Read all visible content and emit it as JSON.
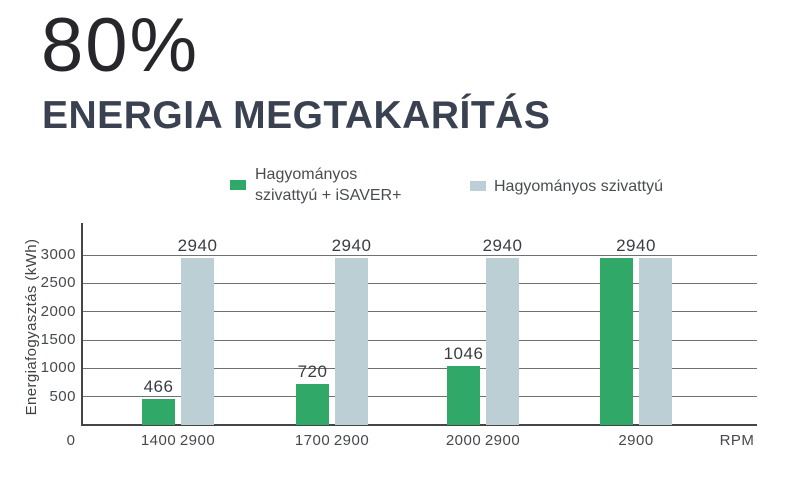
{
  "header": {
    "percent": "80%",
    "subtitle": "ENERGIA MEGTAKARÍTÁS"
  },
  "legend": {
    "items": [
      {
        "label": "Hagyományos\nszivattyú + iSAVER+",
        "color": "#2fa868"
      },
      {
        "label": "Hagyományos szivattyú",
        "color": "#bccfd4"
      }
    ]
  },
  "chart_data": {
    "type": "bar",
    "title": "ENERGIA MEGTAKARÍTÁS",
    "ylabel": "Energiafogyasztás (kWh)",
    "xlabel": "RPM",
    "x_origin_label": "0",
    "ylim": [
      0,
      3000
    ],
    "yticks": [
      500,
      1000,
      1500,
      2000,
      2500,
      3000
    ],
    "grid": true,
    "legend_position": "top",
    "series": [
      {
        "name": "Hagyományos szivattyú + iSAVER+",
        "color": "#2fa868"
      },
      {
        "name": "Hagyományos szivattyú",
        "color": "#bccfd4"
      }
    ],
    "groups": [
      {
        "values": [
          466,
          2940
        ],
        "value_labels": [
          "466",
          "2940"
        ],
        "rpm_labels": [
          "1400",
          "2900"
        ],
        "shared_value_label": "",
        "shared_rpm_label": ""
      },
      {
        "values": [
          720,
          2940
        ],
        "value_labels": [
          "720",
          "2940"
        ],
        "rpm_labels": [
          "1700",
          "2900"
        ],
        "shared_value_label": "",
        "shared_rpm_label": ""
      },
      {
        "values": [
          1046,
          2940
        ],
        "value_labels": [
          "1046",
          "2940"
        ],
        "rpm_labels": [
          "2000",
          "2900"
        ],
        "shared_value_label": "",
        "shared_rpm_label": ""
      },
      {
        "values": [
          2940,
          2940
        ],
        "value_labels": [
          "",
          ""
        ],
        "rpm_labels": [
          "",
          ""
        ],
        "shared_value_label": "2940",
        "shared_rpm_label": "2900"
      }
    ]
  }
}
